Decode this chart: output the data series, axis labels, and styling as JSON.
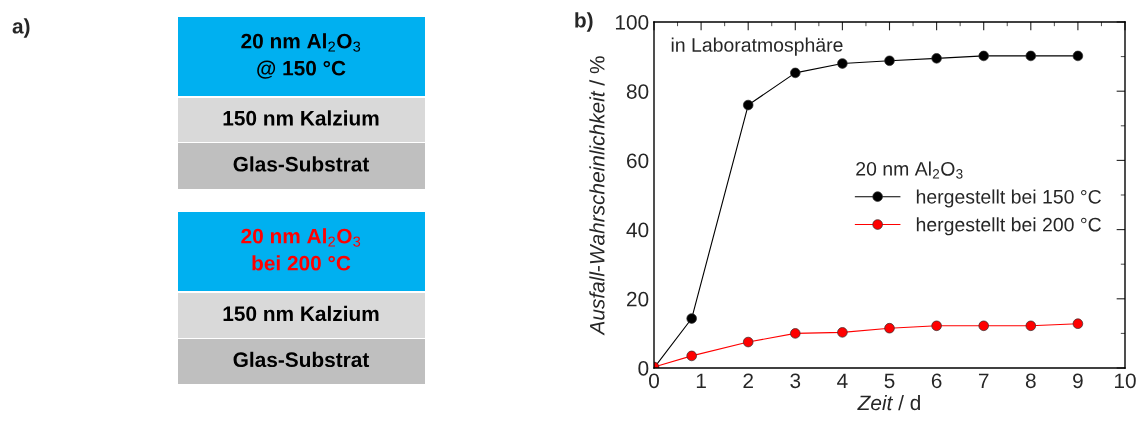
{
  "chart_data": [
    {
      "type": "other",
      "title": "a)",
      "annotations": [
        "20 nm Al$_{2}$O$_{3}$\n@ 150 °C",
        "150 nm Kalzium",
        "Glas-Substrat",
        "20 nm Al$_{2}$O$_{3}$\nbei 200 °C",
        "150 nm Kalzium",
        "Glas-Substrat"
      ]
    },
    {
      "type": "line",
      "title": "b)",
      "xlabel": "Zeit / d",
      "ylabel": "Ausfall-Wahrscheinlichkeit / %",
      "legend_title": "20 nm Al$_{2}$O$_{3}$",
      "annotations": [
        "in Laboratmosphäre"
      ],
      "x": [
        0,
        0.8,
        2,
        3,
        4,
        5,
        6,
        7,
        8,
        9
      ],
      "xlim": [
        0,
        10
      ],
      "xticks": [
        0,
        1,
        2,
        3,
        4,
        5,
        6,
        7,
        8,
        9,
        10
      ],
      "ylim": [
        0,
        100
      ],
      "yticks": [
        0,
        20,
        40,
        60,
        80,
        100
      ],
      "grid": false,
      "legend": "right",
      "marker": "circle",
      "line_style": "solid",
      "series": [
        {
          "name": "hergestellt bei 150 °C",
          "color": "#000000",
          "values": [
            0,
            14.3,
            76,
            85.3,
            88,
            88.8,
            89.5,
            90.2,
            90.2,
            90.2
          ]
        },
        {
          "name": "hergestellt bei 200 °C",
          "color": "#ff0000",
          "values": [
            0.3,
            3.5,
            7.5,
            10,
            10.3,
            11.5,
            12.2,
            12.2,
            12.2,
            12.8
          ]
        }
      ]
    }
  ]
}
